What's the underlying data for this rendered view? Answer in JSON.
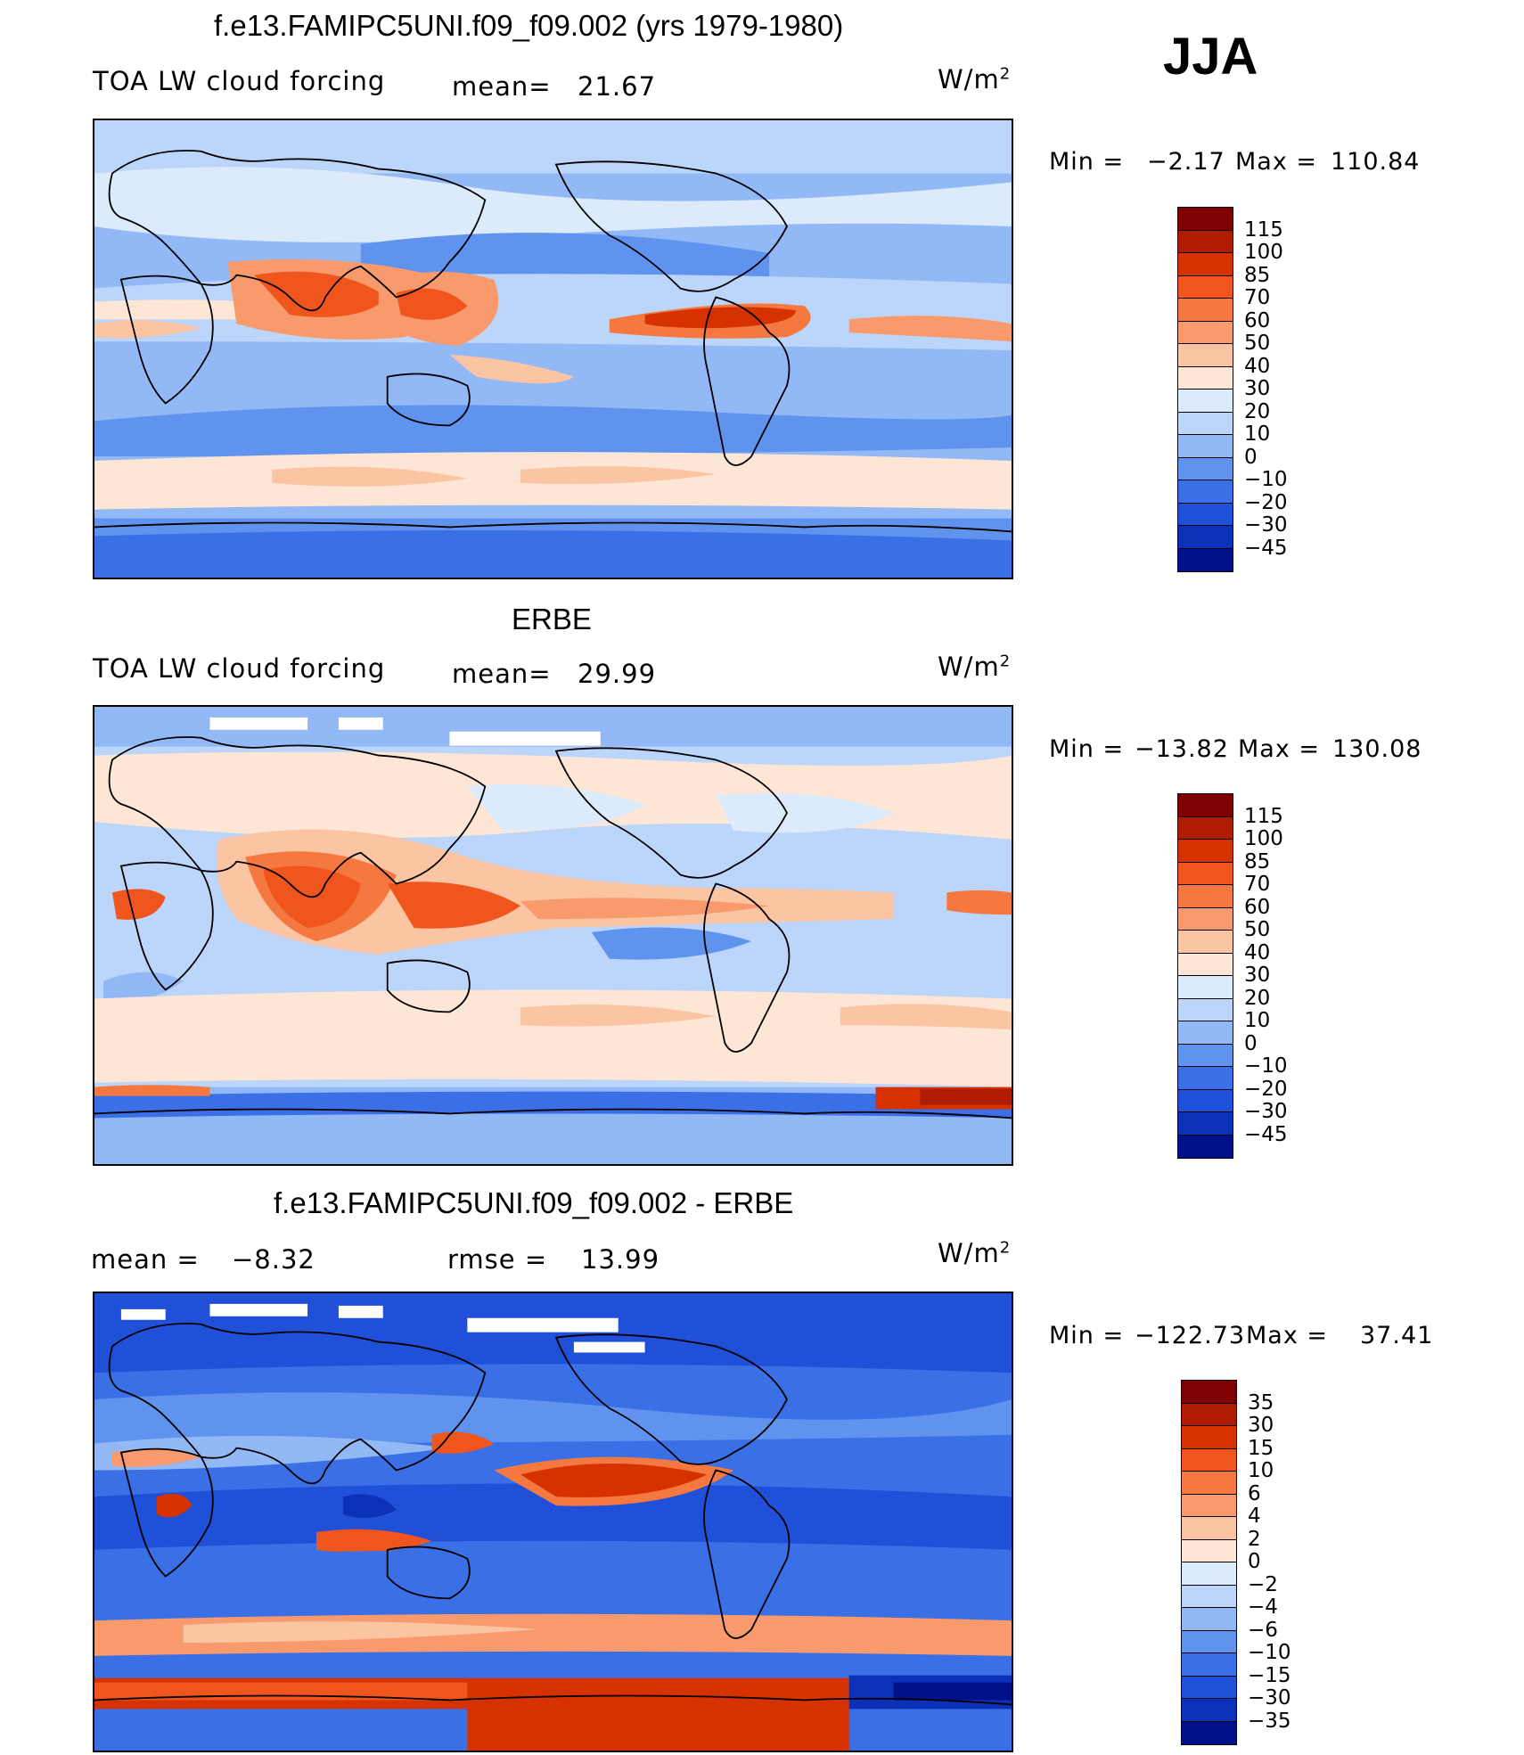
{
  "season": "JJA",
  "units": "W/m",
  "units_sup": "2",
  "panels": [
    {
      "title": "f.e13.FAMIPC5UNI.f09_f09.002 (yrs 1979-1980)",
      "left_label": "TOA LW cloud forcing",
      "mean_label": "mean=",
      "mean_value": "21.67",
      "min_label": "Min =",
      "min_value": "−2.17",
      "max_label": "Max =",
      "max_value": "110.84",
      "colorbar": {
        "labels": [
          "115",
          "100",
          "85",
          "70",
          "60",
          "50",
          "40",
          "30",
          "20",
          "10",
          "0",
          "−10",
          "−20",
          "−30",
          "−45"
        ],
        "colors": [
          "#7f0000",
          "#b01c00",
          "#d63200",
          "#f0551e",
          "#f57840",
          "#f99a6c",
          "#fbc4a2",
          "#fde6d6",
          "#dcebfb",
          "#bcd5fa",
          "#92b8f6",
          "#5f93ee",
          "#3b6fe6",
          "#2150d8",
          "#0b31b8",
          "#001088"
        ]
      },
      "regions": [
        {
          "name": "tropical-atlantic-ocean",
          "value": 40
        },
        {
          "name": "indian-monsoon",
          "value": 85
        },
        {
          "name": "western-pacific",
          "value": 75
        },
        {
          "name": "eastern-pacific-itcz",
          "value": 85
        },
        {
          "name": "southern-ocean-band",
          "value": 35
        },
        {
          "name": "subtropics",
          "value": 5
        },
        {
          "name": "antarctic",
          "value": -15
        }
      ]
    },
    {
      "title": "ERBE",
      "left_label": "TOA LW cloud forcing",
      "mean_label": "mean=",
      "mean_value": "29.99",
      "min_label": "Min =",
      "min_value": "−13.82",
      "max_label": "Max =",
      "max_value": "130.08",
      "colorbar": {
        "labels": [
          "115",
          "100",
          "85",
          "70",
          "60",
          "50",
          "40",
          "30",
          "20",
          "10",
          "0",
          "−10",
          "−20",
          "−30",
          "−45"
        ],
        "colors": [
          "#7f0000",
          "#b01c00",
          "#d63200",
          "#f0551e",
          "#f57840",
          "#f99a6c",
          "#fbc4a2",
          "#fde6d6",
          "#dcebfb",
          "#bcd5fa",
          "#92b8f6",
          "#5f93ee",
          "#3b6fe6",
          "#2150d8",
          "#0b31b8",
          "#001088"
        ]
      },
      "regions": [
        {
          "name": "northern-midlatitudes",
          "value": 35
        },
        {
          "name": "indian-monsoon",
          "value": 75
        },
        {
          "name": "western-pacific",
          "value": 70
        },
        {
          "name": "subtropics",
          "value": 10
        },
        {
          "name": "southern-ocean-band",
          "value": 35
        },
        {
          "name": "antarctic",
          "value": -10
        }
      ]
    },
    {
      "title": "f.e13.FAMIPC5UNI.f09_f09.002 - ERBE",
      "left_label": "mean =",
      "mean_label": "",
      "mean_value": "−8.32",
      "rmse_label": "rmse =",
      "rmse_value": "13.99",
      "min_label": "Min =",
      "min_value": "−122.73",
      "max_label": "Max =",
      "max_value": "37.41",
      "colorbar": {
        "labels": [
          "35",
          "30",
          "15",
          "10",
          "6",
          "4",
          "2",
          "0",
          "−2",
          "−4",
          "−6",
          "−10",
          "−15",
          "−30",
          "−35"
        ],
        "colors": [
          "#7f0000",
          "#b01c00",
          "#d63200",
          "#f0551e",
          "#f57840",
          "#f99a6c",
          "#fbc4a2",
          "#fde6d6",
          "#dcebfb",
          "#bcd5fa",
          "#92b8f6",
          "#5f93ee",
          "#3b6fe6",
          "#2150d8",
          "#0b31b8",
          "#001088"
        ]
      },
      "regions": [
        {
          "name": "eastern-pacific",
          "value": 15
        },
        {
          "name": "southern-ocean",
          "value": 20
        },
        {
          "name": "tropical-land",
          "value": -30
        },
        {
          "name": "global-background",
          "value": -10
        }
      ]
    }
  ]
}
